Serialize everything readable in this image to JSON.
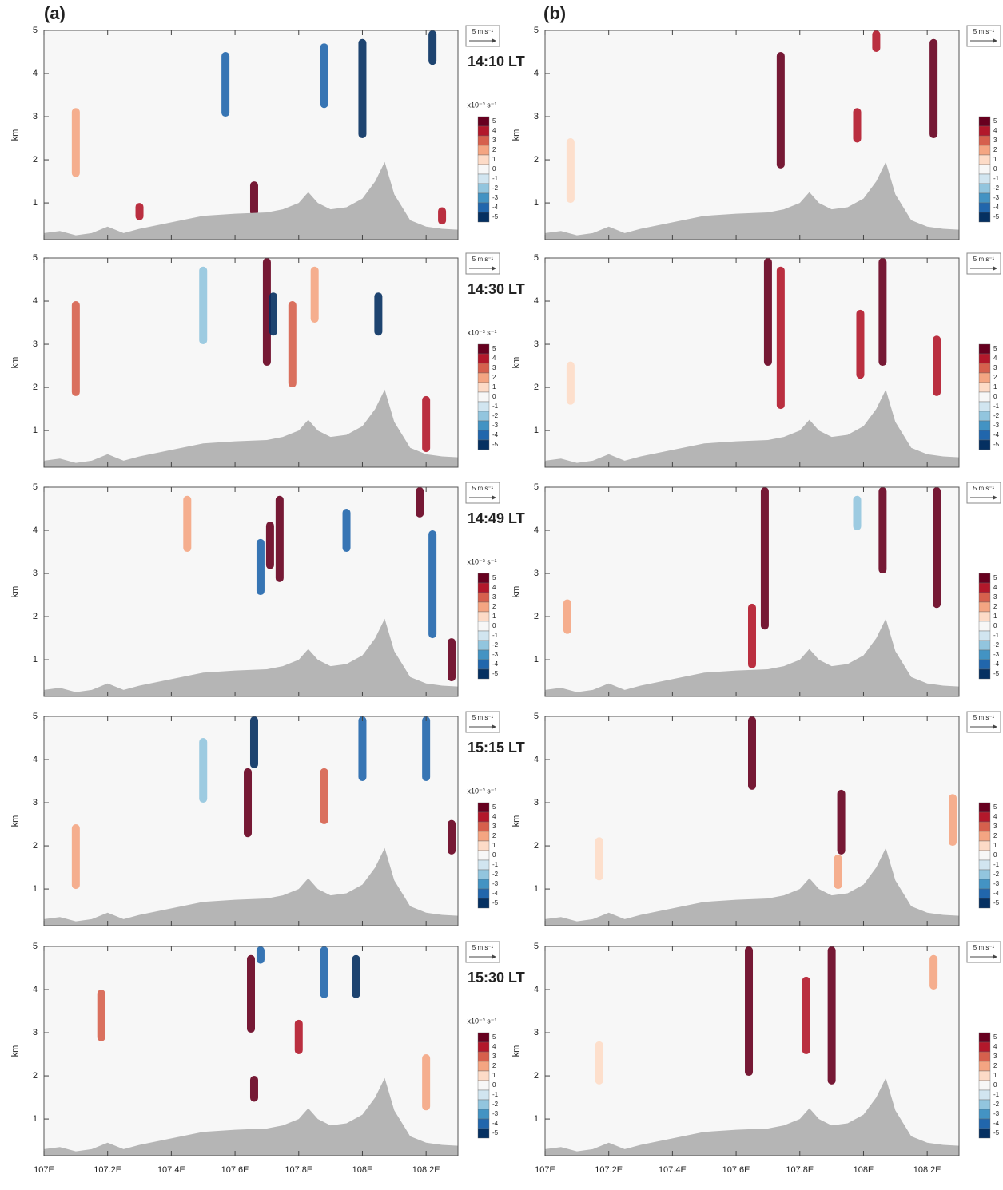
{
  "figure": {
    "panel_labels": [
      "(a)",
      "(b)"
    ],
    "y_label": "km",
    "vector_key": "5 m s⁻¹",
    "xlim": [
      107,
      108.3
    ],
    "ylim": [
      0.15,
      5
    ],
    "xticks": [
      {
        "value": 107,
        "label": "107E"
      },
      {
        "value": 107.2,
        "label": "107.2E"
      },
      {
        "value": 107.4,
        "label": "107.4E"
      },
      {
        "value": 107.6,
        "label": "107.6E"
      },
      {
        "value": 107.8,
        "label": "107.8E"
      },
      {
        "value": 108,
        "label": "108E"
      },
      {
        "value": 108.2,
        "label": "108.2E"
      }
    ],
    "yticks": [
      1,
      2,
      3,
      4,
      5
    ],
    "colorbar": {
      "label": "x10⁻³ s⁻¹",
      "levels": [
        5,
        4,
        3,
        2,
        1,
        0,
        -1,
        -2,
        -3,
        -4,
        -5
      ],
      "colors": [
        "#67001f",
        "#b2182b",
        "#d6604d",
        "#f4a582",
        "#fddbc7",
        "#f7f7f7",
        "#d1e5f0",
        "#92c5de",
        "#4393c3",
        "#2166ac",
        "#053061"
      ]
    },
    "terrain": {
      "x": [
        107.0,
        107.05,
        107.1,
        107.15,
        107.2,
        107.25,
        107.3,
        107.4,
        107.5,
        107.6,
        107.7,
        107.75,
        107.8,
        107.83,
        107.86,
        107.9,
        107.95,
        108.0,
        108.04,
        108.07,
        108.1,
        108.15,
        108.2,
        108.25,
        108.3
      ],
      "height": [
        0.3,
        0.35,
        0.25,
        0.3,
        0.45,
        0.3,
        0.4,
        0.55,
        0.7,
        0.75,
        0.78,
        0.85,
        1.0,
        1.25,
        1.0,
        0.85,
        0.9,
        1.1,
        1.5,
        1.95,
        1.2,
        0.6,
        0.45,
        0.4,
        0.38
      ]
    }
  },
  "chart_data": [
    {
      "type": "cross-section",
      "title": "14:10 LT",
      "streaks": {
        "x": [
          107.66,
          107.57,
          107.88,
          108.0,
          107.1,
          108.22,
          107.3,
          108.25
        ],
        "bottom": [
          0.7,
          3.0,
          3.2,
          2.5,
          1.6,
          4.2,
          0.6,
          0.5
        ],
        "top": [
          1.5,
          4.5,
          4.7,
          4.8,
          3.2,
          5,
          1.0,
          0.9
        ],
        "values": [
          5,
          -4,
          -4,
          -5,
          2,
          -5,
          4,
          4
        ]
      }
    },
    {
      "type": "cross-section",
      "title": "14:30 LT",
      "streaks": {
        "x": [
          107.7,
          107.72,
          107.78,
          108.05,
          107.1,
          107.5,
          107.85,
          108.2
        ],
        "bottom": [
          2.5,
          3.2,
          2,
          3.2,
          1.8,
          3,
          3.5,
          0.5
        ],
        "top": [
          5,
          4.2,
          4,
          4.2,
          4,
          4.8,
          4.8,
          1.8
        ],
        "values": [
          5,
          -5,
          3,
          -5,
          3,
          -2,
          2,
          4
        ]
      }
    },
    {
      "type": "cross-section",
      "title": "14:49 LT",
      "streaks": {
        "x": [
          107.74,
          107.71,
          107.68,
          107.95,
          108.18,
          108.22,
          107.45,
          108.28
        ],
        "bottom": [
          2.8,
          3.1,
          2.5,
          3.5,
          4.3,
          1.5,
          3.5,
          0.5
        ],
        "top": [
          4.8,
          4.2,
          3.8,
          4.5,
          5,
          4,
          4.8,
          1.5
        ],
        "values": [
          5,
          5,
          -4,
          -4,
          5,
          -4,
          2,
          5
        ]
      }
    },
    {
      "type": "cross-section",
      "title": "15:15 LT",
      "streaks": {
        "x": [
          107.64,
          107.66,
          108.0,
          108.2,
          107.88,
          108.28,
          107.1,
          107.5
        ],
        "bottom": [
          2.2,
          3.8,
          3.5,
          3.5,
          2.5,
          1.8,
          1,
          3
        ],
        "top": [
          3.8,
          5,
          5,
          5,
          3.8,
          2.6,
          2.5,
          4.5
        ],
        "values": [
          5,
          -5,
          -4,
          -4,
          3,
          5,
          2,
          -2
        ]
      }
    },
    {
      "type": "cross-section",
      "title": "15:30 LT",
      "streaks": {
        "x": [
          107.65,
          107.66,
          107.8,
          107.98,
          107.88,
          107.68,
          107.18,
          108.2
        ],
        "bottom": [
          3.0,
          1.4,
          2.5,
          3.8,
          3.8,
          4.6,
          2.8,
          1.2
        ],
        "top": [
          4.8,
          2.0,
          3.3,
          4.8,
          5,
          5,
          4,
          2.5
        ],
        "values": [
          5,
          5,
          4,
          -5,
          -4,
          -4,
          3,
          2
        ]
      }
    },
    {
      "type": "cross-section",
      "streaks": {
        "x": [
          107.74,
          107.98,
          108.22,
          108.04,
          107.08
        ],
        "bottom": [
          1.8,
          2.4,
          2.5,
          4.5,
          1
        ],
        "top": [
          4.5,
          3.2,
          4.8,
          5,
          2.5
        ],
        "values": [
          5,
          4,
          5,
          4,
          1
        ]
      }
    },
    {
      "type": "cross-section",
      "streaks": {
        "x": [
          107.7,
          107.74,
          107.99,
          108.06,
          108.23,
          107.08
        ],
        "bottom": [
          2.5,
          1.5,
          2.2,
          2.5,
          1.8,
          1.6
        ],
        "top": [
          5,
          4.8,
          3.8,
          5,
          3.2,
          2.6
        ],
        "values": [
          5,
          4,
          4,
          5,
          4,
          1
        ]
      }
    },
    {
      "type": "cross-section",
      "streaks": {
        "x": [
          107.69,
          107.65,
          108.06,
          108.23,
          107.98,
          107.07
        ],
        "bottom": [
          1.7,
          0.8,
          3,
          2.2,
          4,
          1.6
        ],
        "top": [
          5,
          2.3,
          5,
          5,
          4.8,
          2.4
        ],
        "values": [
          5,
          4,
          5,
          5,
          -2,
          2
        ]
      }
    },
    {
      "type": "cross-section",
      "streaks": {
        "x": [
          107.65,
          107.93,
          107.92,
          108.28,
          107.17
        ],
        "bottom": [
          3.3,
          1.8,
          1,
          2,
          1.2
        ],
        "top": [
          5,
          3.3,
          1.8,
          3.2,
          2.2
        ],
        "values": [
          5,
          5,
          2,
          2,
          1
        ]
      }
    },
    {
      "type": "cross-section",
      "streaks": {
        "x": [
          107.64,
          107.82,
          107.9,
          108.22,
          107.17
        ],
        "bottom": [
          2.0,
          2.5,
          1.8,
          4,
          1.8
        ],
        "top": [
          5,
          4.3,
          5,
          4.8,
          2.8
        ],
        "values": [
          5,
          4,
          5,
          2,
          1
        ]
      }
    }
  ]
}
